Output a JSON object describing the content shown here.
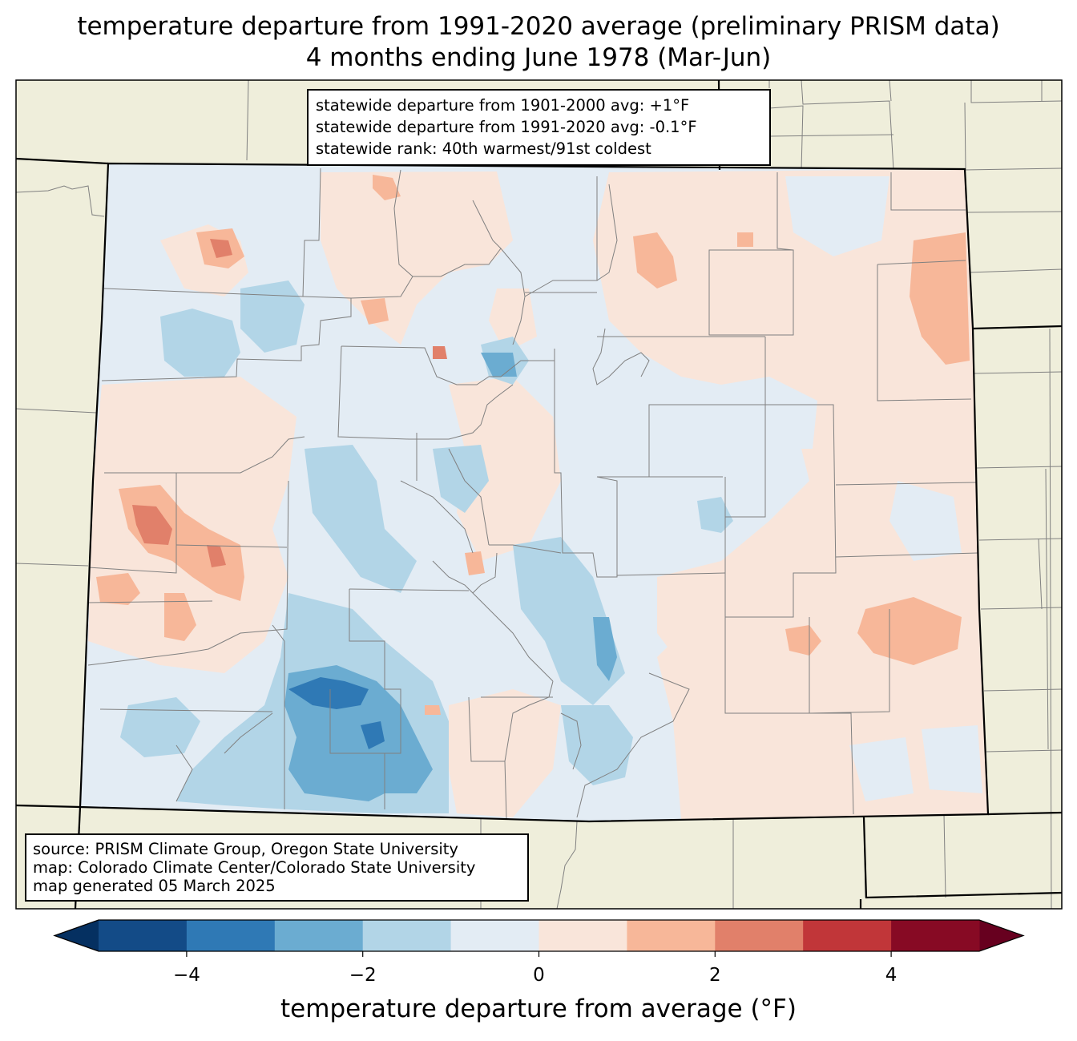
{
  "title_line1": "temperature departure from 1991-2020 average (preliminary PRISM data)",
  "title_line2": "4 months ending June 1978 (Mar-Jun)",
  "stats": {
    "line1": "statewide departure from 1901-2000 avg: +1°F",
    "line2": "statewide departure from 1991-2020 avg: -0.1°F",
    "line3": "statewide rank: 40th warmest/91st coldest"
  },
  "source": {
    "line1": "source: PRISM Climate Group, Oregon State University",
    "line2": "map: Colorado Climate Center/Colorado State University",
    "line3": "map generated 05 March 2025"
  },
  "colorbar": {
    "label": "temperature departure from average (°F)",
    "ticks": [
      {
        "value": -4,
        "label": "−4"
      },
      {
        "value": -2,
        "label": "−2"
      },
      {
        "value": 0,
        "label": "0"
      },
      {
        "value": 2,
        "label": "2"
      },
      {
        "value": 4,
        "label": "4"
      }
    ],
    "min": -5,
    "max": 5,
    "bins": [
      {
        "from": -5,
        "to": -4,
        "color": "#134b87"
      },
      {
        "from": -4,
        "to": -3,
        "color": "#2f79b5"
      },
      {
        "from": -3,
        "to": -2,
        "color": "#6bacd1"
      },
      {
        "from": -2,
        "to": -1,
        "color": "#b2d5e7"
      },
      {
        "from": -1,
        "to": 0,
        "color": "#e3ecf4"
      },
      {
        "from": 0,
        "to": 1,
        "color": "#f9e5da"
      },
      {
        "from": 1,
        "to": 2,
        "color": "#f7b799"
      },
      {
        "from": 2,
        "to": 3,
        "color": "#e1806a"
      },
      {
        "from": 3,
        "to": 4,
        "color": "#c13639"
      },
      {
        "from": 4,
        "to": 5,
        "color": "#870a24"
      }
    ],
    "under_color": "#053061",
    "over_color": "#67001f"
  },
  "colors": {
    "land": "#efeedb",
    "state_border": "#000000",
    "county_border": "#808080",
    "near_zero_negative": "#e3ecf4",
    "near_zero_positive": "#f9e5da"
  }
}
